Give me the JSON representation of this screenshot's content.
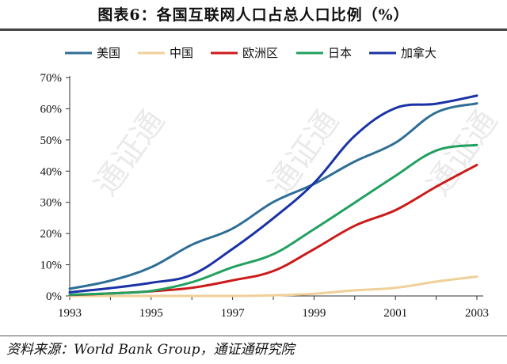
{
  "title": "图表6：各国互联网人口占总人口比例（%）",
  "source": "资料来源：World Bank Group，通证通研究院",
  "watermark": "通证通",
  "chart_data": {
    "type": "line",
    "title": "图表6：各国互联网人口占总人口比例（%）",
    "xlabel": "",
    "ylabel": "",
    "x": [
      1993,
      1994,
      1995,
      1996,
      1997,
      1998,
      1999,
      2000,
      2001,
      2002,
      2003
    ],
    "xticks": [
      "1993",
      "1995",
      "1997",
      "1999",
      "2001",
      "2003"
    ],
    "xlim": [
      1993,
      2003
    ],
    "yticks": [
      "0%",
      "10%",
      "20%",
      "30%",
      "40%",
      "50%",
      "60%",
      "70%"
    ],
    "ylim": [
      0,
      70
    ],
    "grid": false,
    "legend_position": "top",
    "series": [
      {
        "name": "美国",
        "color": "#2e6e96",
        "values": [
          2.3,
          4.9,
          9.2,
          16.4,
          21.6,
          30.1,
          35.9,
          43.1,
          49.1,
          58.8,
          61.7
        ]
      },
      {
        "name": "中国",
        "color": "#f0cf98",
        "values": [
          0.0,
          0.0,
          0.0,
          0.0,
          0.0,
          0.2,
          0.7,
          1.8,
          2.6,
          4.6,
          6.2
        ]
      },
      {
        "name": "欧洲区",
        "color": "#cc1a1a",
        "values": [
          0.3,
          0.8,
          1.5,
          2.6,
          5.0,
          8.0,
          15.0,
          22.5,
          27.5,
          35.0,
          42.0
        ]
      },
      {
        "name": "日本",
        "color": "#21a05f",
        "values": [
          0.4,
          0.8,
          1.6,
          4.4,
          9.2,
          13.4,
          21.4,
          29.9,
          38.5,
          46.6,
          48.4
        ]
      },
      {
        "name": "加拿大",
        "color": "#1a32a6",
        "values": [
          1.2,
          2.5,
          4.2,
          6.8,
          15.1,
          24.9,
          36.2,
          51.3,
          60.2,
          61.6,
          64.2
        ]
      }
    ]
  }
}
